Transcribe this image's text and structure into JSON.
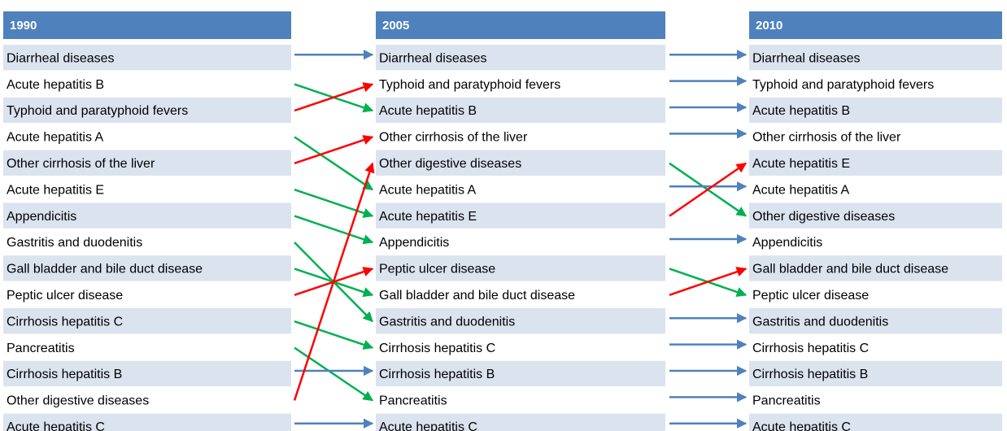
{
  "columns": [
    {
      "header": "1990",
      "items": [
        "Diarrheal diseases",
        "Acute hepatitis B",
        "Typhoid and paratyphoid fevers",
        "Acute hepatitis A",
        "Other cirrhosis of the liver",
        "Acute hepatitis E",
        "Appendicitis",
        "Gastritis and duodenitis",
        "Gall bladder and bile duct disease",
        "Peptic ulcer disease",
        "Cirrhosis hepatitis C",
        "Pancreatitis",
        "Cirrhosis hepatitis B",
        "Other digestive diseases",
        "Acute hepatitis C"
      ]
    },
    {
      "header": "2005",
      "items": [
        "Diarrheal diseases",
        "Typhoid and paratyphoid fevers",
        "Acute hepatitis B",
        "Other cirrhosis of the liver",
        "Other digestive diseases",
        "Acute hepatitis A",
        "Acute hepatitis E",
        "Appendicitis",
        "Peptic ulcer disease",
        "Gall bladder and bile duct disease",
        "Gastritis and duodenitis",
        "Cirrhosis hepatitis C",
        "Cirrhosis hepatitis B",
        "Pancreatitis",
        "Acute hepatitis C"
      ]
    },
    {
      "header": "2010",
      "items": [
        "Diarrheal diseases",
        "Typhoid and paratyphoid fevers",
        "Acute hepatitis B",
        "Other cirrhosis of the liver",
        "Acute hepatitis E",
        "Acute hepatitis A",
        "Other digestive diseases",
        "Appendicitis",
        "Gall bladder and bile duct disease",
        "Peptic ulcer disease",
        "Gastritis and duodenitis",
        "Cirrhosis hepatitis C",
        "Cirrhosis hepatitis B",
        "Pancreatitis",
        "Acute hepatitis C"
      ]
    }
  ]
}
